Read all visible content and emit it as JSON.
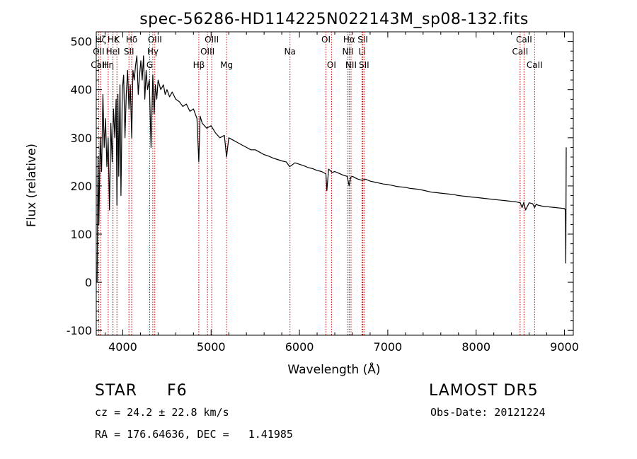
{
  "chart_data": {
    "type": "line",
    "title": "spec-56286-HD114225N022143M_sp08-132.fits",
    "xlabel": "Wavelength (Å)",
    "ylabel": "Flux (relative)",
    "xlim": [
      3700,
      9100
    ],
    "ylim": [
      -110,
      520
    ],
    "xticks": [
      4000,
      5000,
      6000,
      7000,
      8000,
      9000
    ],
    "yticks": [
      -100,
      0,
      100,
      200,
      300,
      400,
      500
    ],
    "grid": false,
    "series": [
      {
        "x": [
          3710,
          3720,
          3730,
          3745,
          3760,
          3775,
          3790,
          3805,
          3820,
          3835,
          3850,
          3865,
          3880,
          3895,
          3910,
          3925,
          3934,
          3945,
          3955,
          3968,
          3980,
          3995,
          4010,
          4025,
          4040,
          4055,
          4070,
          4085,
          4101,
          4115,
          4130,
          4145,
          4160,
          4175,
          4190,
          4205,
          4220,
          4235,
          4250,
          4265,
          4280,
          4300,
          4320,
          4340,
          4355,
          4370,
          4385,
          4400,
          4430,
          4460,
          4480,
          4500,
          4530,
          4560,
          4600,
          4640,
          4680,
          4720,
          4760,
          4800,
          4840,
          4861,
          4875,
          4900,
          4950,
          5000,
          5050,
          5100,
          5150,
          5175,
          5200,
          5250,
          5300,
          5350,
          5400,
          5450,
          5500,
          5550,
          5600,
          5650,
          5700,
          5750,
          5800,
          5850,
          5890,
          5950,
          6000,
          6050,
          6100,
          6150,
          6200,
          6250,
          6300,
          6310,
          6330,
          6370,
          6400,
          6450,
          6500,
          6540,
          6563,
          6580,
          6600,
          6650,
          6700,
          6750,
          6800,
          6850,
          6900,
          6950,
          7000,
          7050,
          7100,
          7150,
          7200,
          7250,
          7300,
          7350,
          7400,
          7450,
          7500,
          7550,
          7600,
          7650,
          7700,
          7750,
          7800,
          7850,
          7900,
          7950,
          8000,
          8050,
          8100,
          8150,
          8200,
          8250,
          8300,
          8350,
          8400,
          8450,
          8500,
          8520,
          8540,
          8560,
          8600,
          8640,
          8662,
          8680,
          8700,
          8750,
          8800,
          8850,
          8900,
          8950,
          9000,
          9010,
          9015,
          9020
        ],
        "y": [
          0,
          260,
          120,
          300,
          230,
          390,
          280,
          340,
          240,
          300,
          150,
          330,
          250,
          360,
          300,
          380,
          160,
          390,
          220,
          410,
          180,
          400,
          430,
          300,
          390,
          440,
          360,
          410,
          300,
          440,
          420,
          450,
          470,
          390,
          430,
          460,
          420,
          470,
          380,
          440,
          400,
          420,
          280,
          430,
          350,
          410,
          380,
          420,
          400,
          410,
          390,
          400,
          385,
          395,
          380,
          375,
          365,
          370,
          355,
          360,
          340,
          250,
          345,
          330,
          320,
          325,
          310,
          300,
          305,
          260,
          300,
          295,
          290,
          285,
          280,
          275,
          275,
          270,
          265,
          262,
          258,
          255,
          252,
          250,
          240,
          248,
          245,
          242,
          238,
          236,
          232,
          230,
          225,
          190,
          235,
          228,
          230,
          226,
          222,
          220,
          200,
          218,
          220,
          215,
          212,
          214,
          210,
          208,
          206,
          204,
          203,
          201,
          199,
          198,
          197,
          195,
          194,
          193,
          191,
          189,
          187,
          186,
          185,
          184,
          183,
          182,
          180,
          179,
          178,
          177,
          176,
          175,
          174,
          173,
          172,
          171,
          170,
          169,
          168,
          167,
          165,
          155,
          166,
          150,
          165,
          163,
          155,
          162,
          160,
          158,
          157,
          156,
          155,
          154,
          153,
          150,
          40,
          280
        ]
      }
    ],
    "lines": [
      {
        "label": "Hζ",
        "wavelength": 3750,
        "row": 1
      },
      {
        "label": "OII",
        "wavelength": 3727,
        "row": 2
      },
      {
        "label": "CaII",
        "wavelength": 3729,
        "row": 3
      },
      {
        "label": "Hη",
        "wavelength": 3835,
        "row": 3
      },
      {
        "label": "Hε",
        "wavelength": 3889,
        "row": 1
      },
      {
        "label": "HeI",
        "wavelength": 3889,
        "row": 2
      },
      {
        "label": "K",
        "wavelength": 3934,
        "row": 1
      },
      {
        "label": "SII",
        "wavelength": 4070,
        "row": 2
      },
      {
        "label": "Hδ",
        "wavelength": 4101,
        "row": 1
      },
      {
        "label": "G",
        "wavelength": 4305,
        "row": 3
      },
      {
        "label": "Hγ",
        "wavelength": 4340,
        "row": 2
      },
      {
        "label": "OIII",
        "wavelength": 4363,
        "row": 1
      },
      {
        "label": "Hβ",
        "wavelength": 4861,
        "row": 3
      },
      {
        "label": "OIII",
        "wavelength": 4959,
        "row": 2
      },
      {
        "label": "OIII",
        "wavelength": 5007,
        "row": 1
      },
      {
        "label": "Mg",
        "wavelength": 5175,
        "row": 3
      },
      {
        "label": "Na",
        "wavelength": 5893,
        "row": 2
      },
      {
        "label": "OI",
        "wavelength": 6300,
        "row": 1
      },
      {
        "label": "OI",
        "wavelength": 6363,
        "row": 3
      },
      {
        "label": "NII",
        "wavelength": 6548,
        "row": 2
      },
      {
        "label": "NII",
        "wavelength": 6584,
        "row": 3
      },
      {
        "label": "Hα",
        "wavelength": 6563,
        "row": 1
      },
      {
        "label": "Li",
        "wavelength": 6708,
        "row": 2
      },
      {
        "label": "SII",
        "wavelength": 6717,
        "row": 1
      },
      {
        "label": "SII",
        "wavelength": 6731,
        "row": 3
      },
      {
        "label": "CaII",
        "wavelength": 8498,
        "row": 2
      },
      {
        "label": "CaII",
        "wavelength": 8542,
        "row": 1
      },
      {
        "label": "CaII",
        "wavelength": 8662,
        "row": 3
      }
    ]
  },
  "info": {
    "class": "STAR",
    "subclass": "F6",
    "survey": "LAMOST DR5",
    "cz": "cz = 24.2 ± 22.8 km/s",
    "obs_date": "Obs-Date: 20121224",
    "radec": "RA = 176.64636, DEC =   1.41985"
  },
  "colors": {
    "line_marker": "#c00000",
    "spectrum": "#000000"
  }
}
